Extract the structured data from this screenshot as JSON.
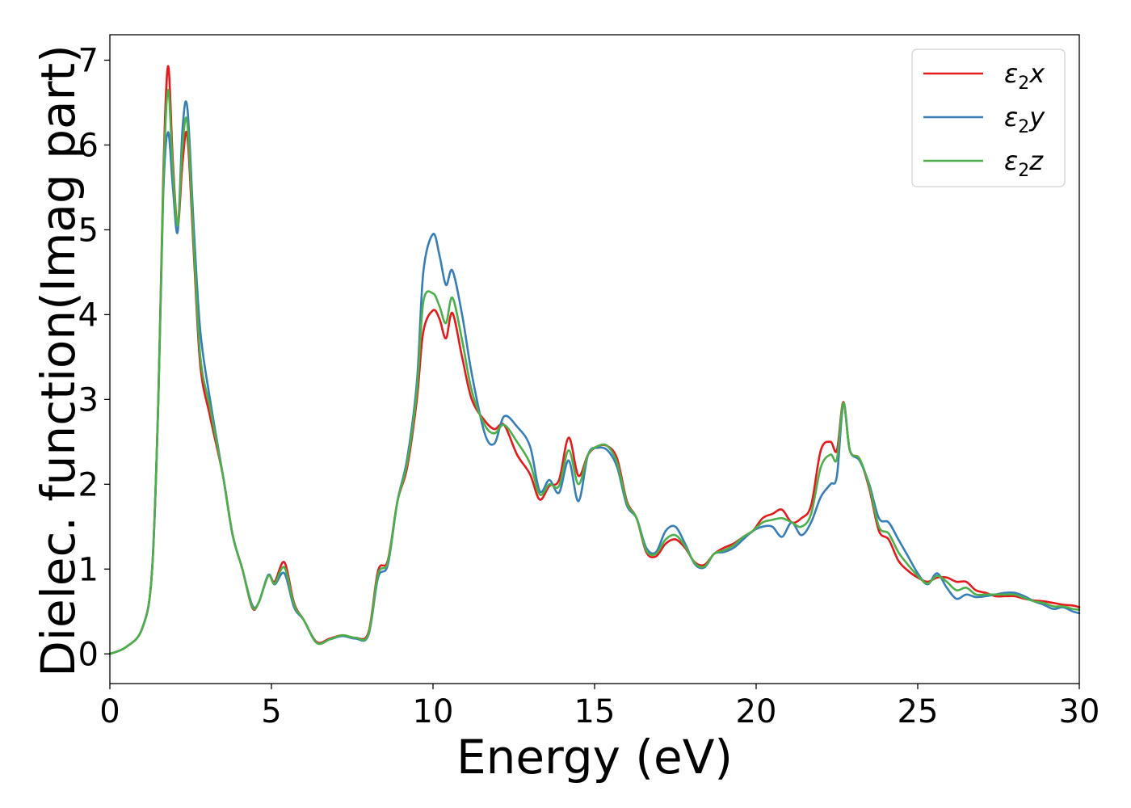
{
  "chart_data": {
    "type": "line",
    "xlabel": "Energy (eV)",
    "ylabel": "Dielec. function(Imag part)",
    "xlim": [
      0,
      30
    ],
    "ylim": [
      -0.35,
      7.3
    ],
    "xticks": [
      0,
      5,
      10,
      15,
      20,
      25,
      30
    ],
    "yticks": [
      0,
      1,
      2,
      3,
      4,
      5,
      6,
      7
    ],
    "grid": false,
    "legend_position": "top-right",
    "series": [
      {
        "name": "ε2x",
        "legend": {
          "symbol": "ε",
          "sub": "2",
          "var": "x"
        },
        "color": "#e41a1c",
        "x": [
          0,
          0.5,
          1.0,
          1.3,
          1.5,
          1.65,
          1.8,
          1.95,
          2.1,
          2.25,
          2.4,
          2.6,
          2.8,
          3.1,
          3.5,
          3.8,
          4.1,
          4.4,
          4.6,
          4.9,
          5.1,
          5.4,
          5.7,
          6.0,
          6.4,
          6.8,
          7.2,
          7.6,
          8.0,
          8.3,
          8.6,
          8.9,
          9.2,
          9.5,
          9.7,
          10.0,
          10.2,
          10.4,
          10.6,
          10.9,
          11.2,
          11.6,
          11.9,
          12.2,
          12.6,
          13.0,
          13.3,
          13.6,
          13.9,
          14.2,
          14.5,
          14.8,
          15.1,
          15.4,
          15.7,
          16.0,
          16.3,
          16.6,
          16.9,
          17.2,
          17.5,
          17.8,
          18.1,
          18.4,
          18.7,
          19.0,
          19.3,
          19.6,
          19.9,
          20.2,
          20.5,
          20.8,
          21.1,
          21.4,
          21.7,
          22.0,
          22.3,
          22.5,
          22.7,
          22.9,
          23.2,
          23.5,
          23.8,
          24.1,
          24.4,
          24.7,
          25.0,
          25.3,
          25.6,
          25.9,
          26.2,
          26.5,
          26.8,
          27.1,
          27.4,
          27.7,
          28.0,
          28.3,
          28.6,
          28.9,
          29.2,
          29.5,
          29.8,
          30.0
        ],
        "values": [
          0,
          0.08,
          0.3,
          0.95,
          3.0,
          5.6,
          6.93,
          5.8,
          5.05,
          5.8,
          6.1,
          4.7,
          3.4,
          2.8,
          2.1,
          1.4,
          1.0,
          0.55,
          0.6,
          0.92,
          0.85,
          1.08,
          0.6,
          0.4,
          0.14,
          0.18,
          0.22,
          0.19,
          0.25,
          0.98,
          1.1,
          1.8,
          2.2,
          3.0,
          3.8,
          4.05,
          3.95,
          3.72,
          4.02,
          3.5,
          3.0,
          2.75,
          2.65,
          2.7,
          2.35,
          2.12,
          1.82,
          1.98,
          2.05,
          2.55,
          2.1,
          2.35,
          2.45,
          2.45,
          2.3,
          1.8,
          1.6,
          1.2,
          1.15,
          1.3,
          1.35,
          1.25,
          1.08,
          1.05,
          1.18,
          1.25,
          1.3,
          1.38,
          1.45,
          1.6,
          1.65,
          1.7,
          1.55,
          1.6,
          1.75,
          2.4,
          2.5,
          2.4,
          2.97,
          2.4,
          2.3,
          1.95,
          1.45,
          1.35,
          1.1,
          0.98,
          0.9,
          0.85,
          0.9,
          0.9,
          0.85,
          0.85,
          0.75,
          0.72,
          0.68,
          0.68,
          0.68,
          0.65,
          0.63,
          0.62,
          0.6,
          0.58,
          0.57,
          0.55
        ]
      },
      {
        "name": "ε2y",
        "legend": {
          "symbol": "ε",
          "sub": "2",
          "var": "y"
        },
        "color": "#377eb8",
        "x": [
          0,
          0.5,
          1.0,
          1.3,
          1.5,
          1.65,
          1.8,
          1.95,
          2.1,
          2.25,
          2.4,
          2.6,
          2.8,
          3.1,
          3.5,
          3.8,
          4.1,
          4.4,
          4.6,
          4.9,
          5.1,
          5.4,
          5.7,
          6.0,
          6.4,
          6.8,
          7.2,
          7.6,
          8.0,
          8.3,
          8.6,
          8.9,
          9.2,
          9.5,
          9.7,
          10.0,
          10.2,
          10.4,
          10.6,
          10.9,
          11.2,
          11.6,
          11.9,
          12.2,
          12.6,
          13.0,
          13.3,
          13.6,
          13.9,
          14.2,
          14.5,
          14.8,
          15.1,
          15.4,
          15.7,
          16.0,
          16.3,
          16.6,
          16.9,
          17.2,
          17.5,
          17.8,
          18.1,
          18.4,
          18.7,
          19.0,
          19.3,
          19.6,
          19.9,
          20.2,
          20.5,
          20.8,
          21.1,
          21.4,
          21.7,
          22.0,
          22.3,
          22.5,
          22.7,
          22.9,
          23.2,
          23.5,
          23.8,
          24.1,
          24.4,
          24.7,
          25.0,
          25.3,
          25.6,
          25.9,
          26.2,
          26.5,
          26.8,
          27.1,
          27.4,
          27.7,
          28.0,
          28.3,
          28.6,
          28.9,
          29.2,
          29.5,
          29.8,
          30.0
        ],
        "values": [
          0,
          0.08,
          0.3,
          0.95,
          3.0,
          5.4,
          6.15,
          5.5,
          4.98,
          6.2,
          6.43,
          5.0,
          3.8,
          3.0,
          2.1,
          1.4,
          1.0,
          0.58,
          0.6,
          0.93,
          0.82,
          0.95,
          0.55,
          0.4,
          0.13,
          0.17,
          0.21,
          0.18,
          0.22,
          0.9,
          1.05,
          1.8,
          2.3,
          3.2,
          4.5,
          4.95,
          4.7,
          4.35,
          4.52,
          4.0,
          3.3,
          2.6,
          2.48,
          2.8,
          2.68,
          2.45,
          1.92,
          2.05,
          1.9,
          2.28,
          1.8,
          2.35,
          2.43,
          2.4,
          2.2,
          1.75,
          1.6,
          1.25,
          1.2,
          1.45,
          1.5,
          1.3,
          1.06,
          1.02,
          1.18,
          1.2,
          1.25,
          1.35,
          1.45,
          1.5,
          1.5,
          1.38,
          1.55,
          1.4,
          1.55,
          1.85,
          2.0,
          2.1,
          2.95,
          2.4,
          2.28,
          2.0,
          1.6,
          1.55,
          1.35,
          1.15,
          0.95,
          0.82,
          0.95,
          0.78,
          0.65,
          0.7,
          0.67,
          0.68,
          0.7,
          0.72,
          0.72,
          0.68,
          0.62,
          0.58,
          0.53,
          0.55,
          0.5,
          0.48
        ]
      },
      {
        "name": "ε2z",
        "legend": {
          "symbol": "ε",
          "sub": "2",
          "var": "z"
        },
        "color": "#4daf4a",
        "x": [
          0,
          0.5,
          1.0,
          1.3,
          1.5,
          1.65,
          1.8,
          1.95,
          2.1,
          2.25,
          2.4,
          2.6,
          2.8,
          3.1,
          3.5,
          3.8,
          4.1,
          4.4,
          4.6,
          4.9,
          5.1,
          5.4,
          5.7,
          6.0,
          6.4,
          6.8,
          7.2,
          7.6,
          8.0,
          8.3,
          8.6,
          8.9,
          9.2,
          9.5,
          9.7,
          10.0,
          10.2,
          10.4,
          10.6,
          10.9,
          11.2,
          11.6,
          11.9,
          12.2,
          12.6,
          13.0,
          13.3,
          13.6,
          13.9,
          14.2,
          14.5,
          14.8,
          15.1,
          15.4,
          15.7,
          16.0,
          16.3,
          16.6,
          16.9,
          17.2,
          17.5,
          17.8,
          18.1,
          18.4,
          18.7,
          19.0,
          19.3,
          19.6,
          19.9,
          20.2,
          20.5,
          20.8,
          21.1,
          21.4,
          21.7,
          22.0,
          22.3,
          22.5,
          22.7,
          22.9,
          23.2,
          23.5,
          23.8,
          24.1,
          24.4,
          24.7,
          25.0,
          25.3,
          25.6,
          25.9,
          26.2,
          26.5,
          26.8,
          27.1,
          27.4,
          27.7,
          28.0,
          28.3,
          28.6,
          28.9,
          29.2,
          29.5,
          29.8,
          30.0
        ],
        "values": [
          0,
          0.08,
          0.3,
          0.95,
          3.0,
          5.5,
          6.65,
          5.7,
          5.05,
          6.0,
          6.25,
          4.8,
          3.5,
          2.9,
          2.1,
          1.4,
          1.0,
          0.56,
          0.6,
          0.92,
          0.83,
          1.02,
          0.58,
          0.4,
          0.13,
          0.17,
          0.22,
          0.19,
          0.23,
          0.94,
          1.08,
          1.8,
          2.25,
          3.1,
          4.15,
          4.25,
          4.1,
          3.9,
          4.2,
          3.7,
          3.1,
          2.7,
          2.6,
          2.7,
          2.5,
          2.25,
          1.88,
          2.0,
          1.98,
          2.4,
          2.0,
          2.35,
          2.45,
          2.45,
          2.25,
          1.78,
          1.6,
          1.22,
          1.18,
          1.35,
          1.4,
          1.27,
          1.07,
          1.03,
          1.18,
          1.22,
          1.28,
          1.38,
          1.45,
          1.55,
          1.58,
          1.6,
          1.55,
          1.5,
          1.65,
          2.2,
          2.35,
          2.3,
          2.96,
          2.4,
          2.3,
          1.98,
          1.5,
          1.42,
          1.2,
          1.05,
          0.92,
          0.83,
          0.92,
          0.85,
          0.75,
          0.78,
          0.7,
          0.7,
          0.7,
          0.7,
          0.7,
          0.66,
          0.62,
          0.6,
          0.56,
          0.56,
          0.53,
          0.52
        ]
      }
    ]
  }
}
